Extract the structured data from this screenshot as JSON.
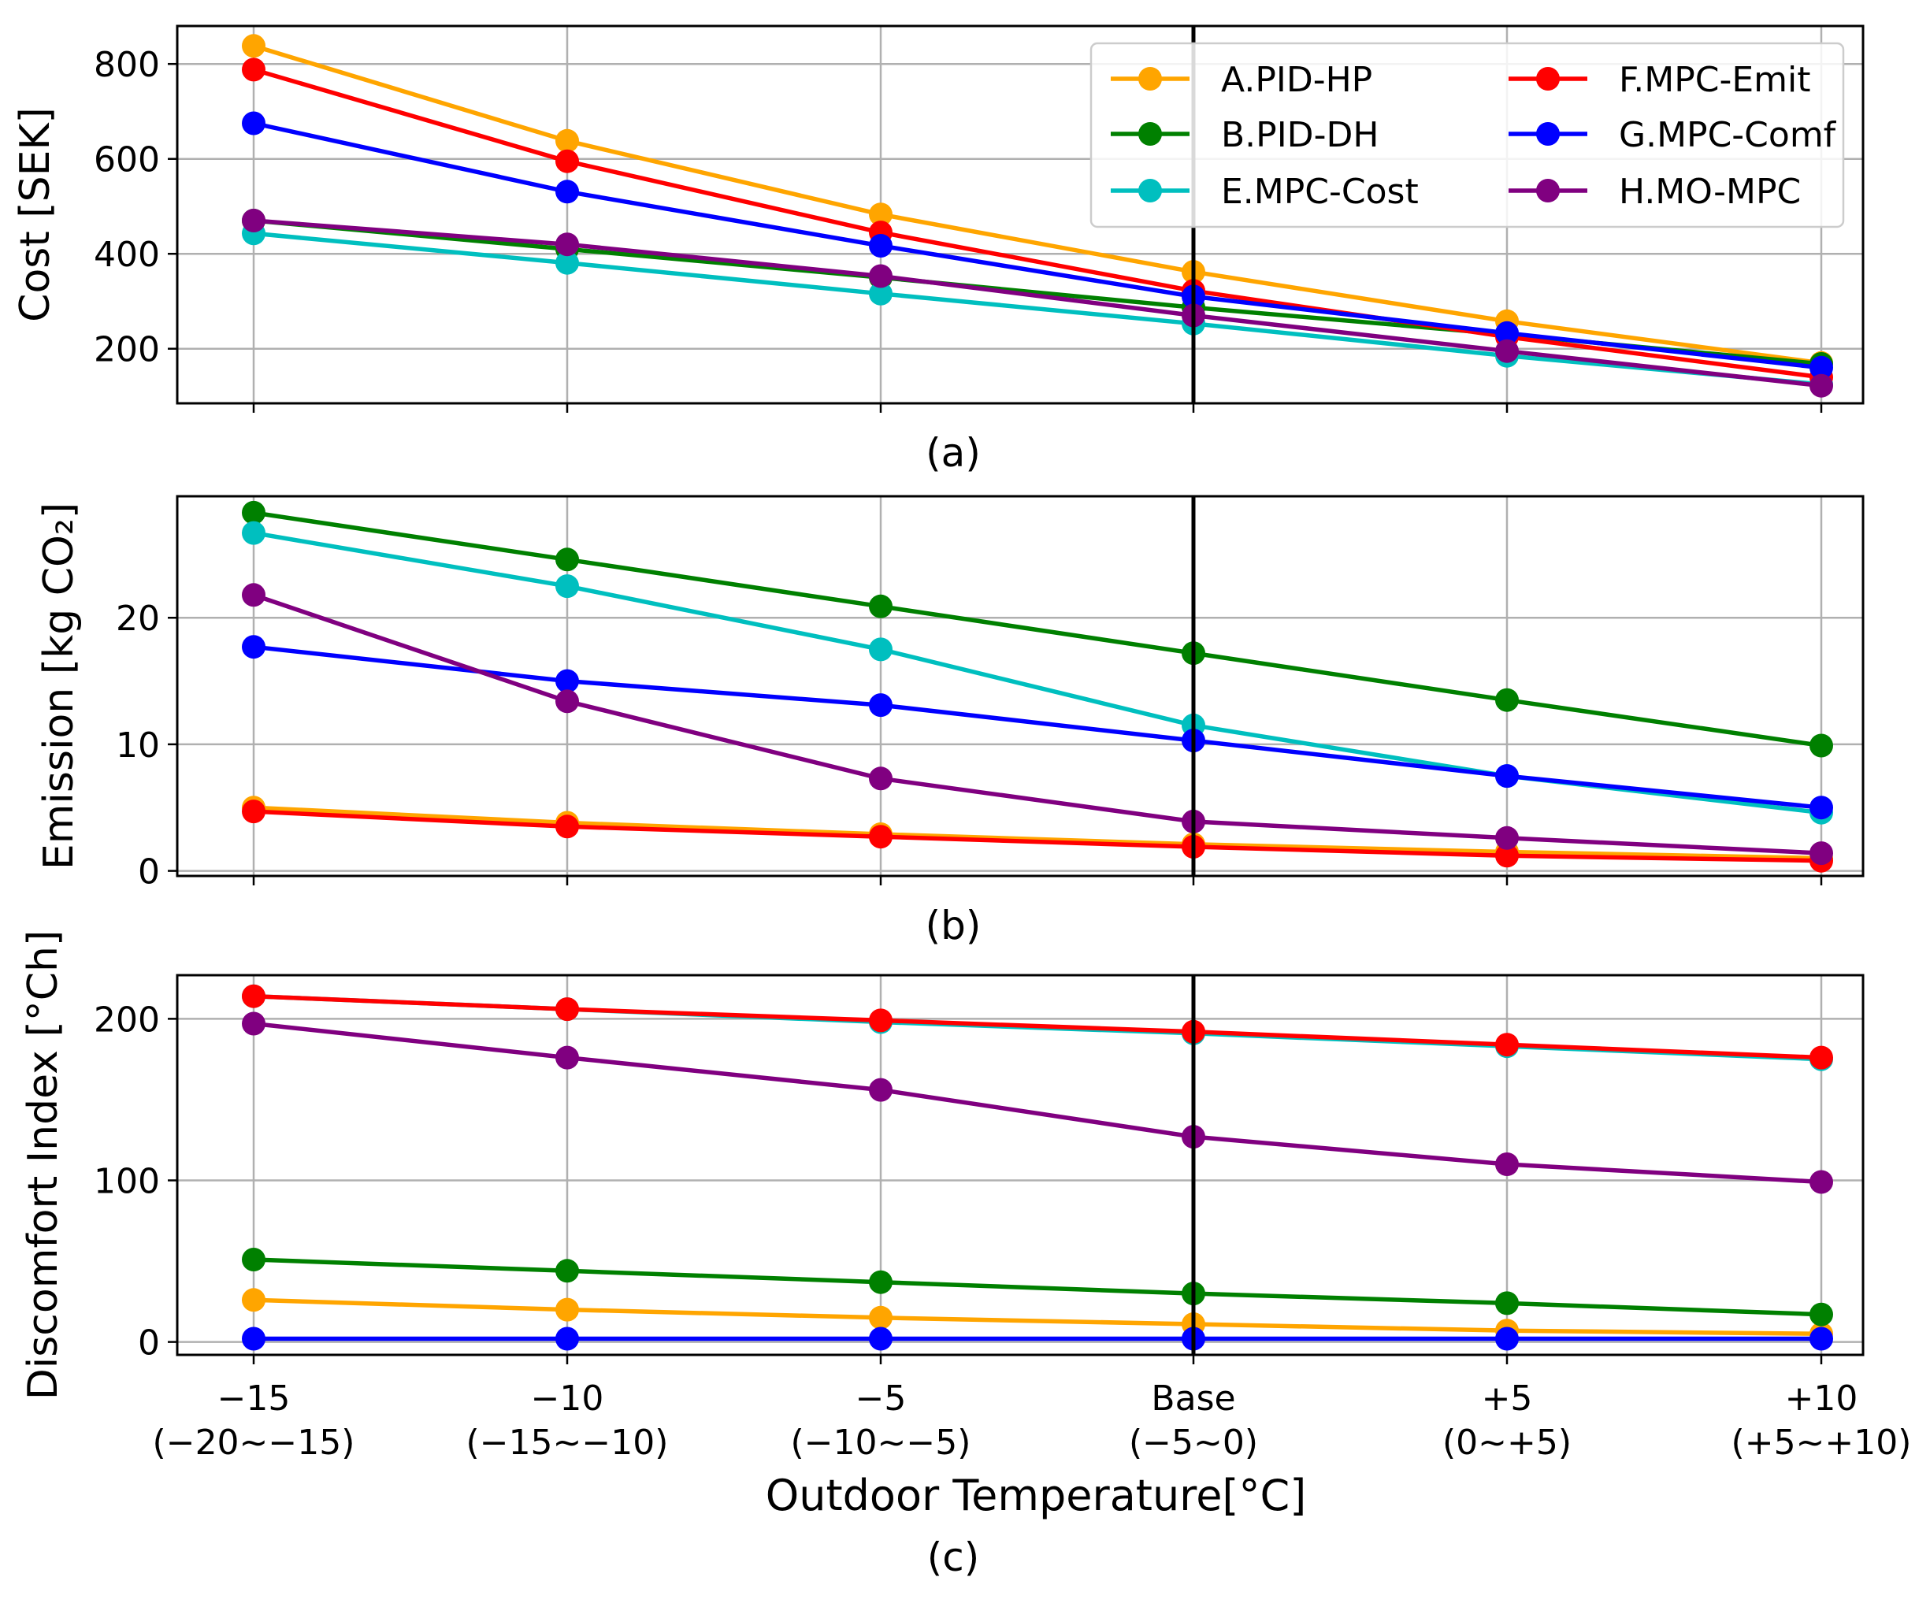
{
  "x_categories": [
    {
      "main": "−15",
      "range": "(−20∼−15)"
    },
    {
      "main": "−10",
      "range": "(−15∼−10)"
    },
    {
      "main": "−5",
      "range": "(−10∼−5)"
    },
    {
      "main": "Base",
      "range": "(−5∼0)"
    },
    {
      "main": "+5",
      "range": "(0∼+5)"
    },
    {
      "main": "+10",
      "range": "(+5∼+10)"
    }
  ],
  "xlabel": "Outdoor Temperature[°C]",
  "base_index": 3,
  "legend": [
    {
      "name": "A.PID-HP",
      "color": "#FFA500"
    },
    {
      "name": "B.PID-DH",
      "color": "#008000"
    },
    {
      "name": "E.MPC-Cost",
      "color": "#00BFBF"
    },
    {
      "name": "F.MPC-Emit",
      "color": "#FF0000"
    },
    {
      "name": "G.MPC-Comf",
      "color": "#0000FF"
    },
    {
      "name": "H.MO-MPC",
      "color": "#800080"
    }
  ],
  "chart_data": [
    {
      "type": "line",
      "caption": "(a)",
      "ylabel": "Cost [SEK]",
      "ylim": [
        85,
        880
      ],
      "yticks": [
        200,
        400,
        600,
        800
      ],
      "series": [
        {
          "name": "A.PID-HP",
          "color": "#FFA500",
          "values": [
            838,
            638,
            483,
            362,
            258,
            170
          ]
        },
        {
          "name": "B.PID-DH",
          "color": "#008000",
          "values": [
            470,
            410,
            350,
            287,
            230,
            168
          ]
        },
        {
          "name": "E.MPC-Cost",
          "color": "#00BFBF",
          "values": [
            443,
            381,
            316,
            253,
            185,
            125
          ]
        },
        {
          "name": "F.MPC-Emit",
          "color": "#FF0000",
          "values": [
            788,
            595,
            445,
            322,
            225,
            140
          ]
        },
        {
          "name": "G.MPC-Comf",
          "color": "#0000FF",
          "values": [
            675,
            531,
            417,
            310,
            233,
            160
          ]
        },
        {
          "name": "H.MO-MPC",
          "color": "#800080",
          "values": [
            470,
            420,
            353,
            270,
            195,
            122
          ]
        }
      ]
    },
    {
      "type": "line",
      "caption": "(b)",
      "ylabel": "Emission [kg CO₂]",
      "ylim": [
        -0.4,
        29.6
      ],
      "yticks": [
        0,
        10,
        20
      ],
      "series": [
        {
          "name": "A.PID-HP",
          "color": "#FFA500",
          "values": [
            5.0,
            3.8,
            2.9,
            2.1,
            1.5,
            1.0
          ]
        },
        {
          "name": "B.PID-DH",
          "color": "#008000",
          "values": [
            28.3,
            24.6,
            20.9,
            17.2,
            13.5,
            9.9
          ]
        },
        {
          "name": "E.MPC-Cost",
          "color": "#00BFBF",
          "values": [
            26.7,
            22.5,
            17.5,
            11.5,
            7.5,
            4.6
          ]
        },
        {
          "name": "F.MPC-Emit",
          "color": "#FF0000",
          "values": [
            4.7,
            3.5,
            2.7,
            1.9,
            1.2,
            0.8
          ]
        },
        {
          "name": "G.MPC-Comf",
          "color": "#0000FF",
          "values": [
            17.7,
            15.0,
            13.1,
            10.3,
            7.5,
            5.0
          ]
        },
        {
          "name": "H.MO-MPC",
          "color": "#800080",
          "values": [
            21.8,
            13.4,
            7.3,
            3.9,
            2.6,
            1.4
          ]
        }
      ]
    },
    {
      "type": "line",
      "caption": "(c)",
      "ylabel": "Discomfort Index [°Ch]",
      "ylim": [
        -8,
        227
      ],
      "yticks": [
        0,
        100,
        200
      ],
      "series": [
        {
          "name": "A.PID-HP",
          "color": "#FFA500",
          "values": [
            26,
            20,
            15,
            11,
            7,
            5
          ]
        },
        {
          "name": "B.PID-DH",
          "color": "#008000",
          "values": [
            51,
            44,
            37,
            30,
            24,
            17
          ]
        },
        {
          "name": "E.MPC-Cost",
          "color": "#00BFBF",
          "values": [
            214,
            206,
            198,
            191,
            183,
            175
          ]
        },
        {
          "name": "F.MPC-Emit",
          "color": "#FF0000",
          "values": [
            214,
            206,
            199,
            192,
            184,
            176
          ]
        },
        {
          "name": "G.MPC-Comf",
          "color": "#0000FF",
          "values": [
            2,
            2,
            2,
            2,
            2,
            2
          ]
        },
        {
          "name": "H.MO-MPC",
          "color": "#800080",
          "values": [
            197,
            176,
            156,
            127,
            110,
            99
          ]
        }
      ]
    }
  ]
}
